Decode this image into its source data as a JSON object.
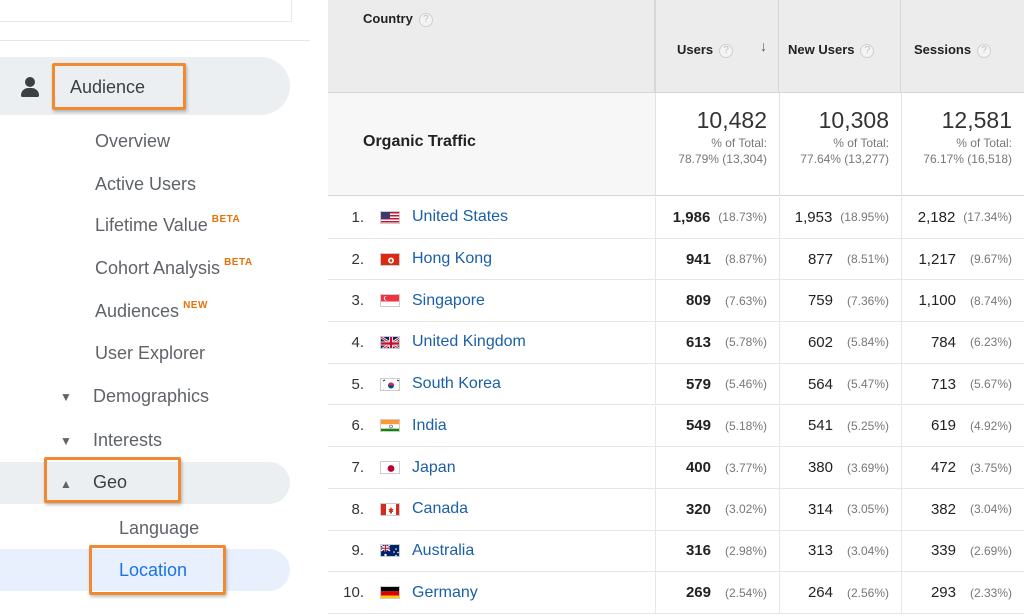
{
  "sidebar": {
    "audience_label": "Audience",
    "items": [
      {
        "label": "Overview",
        "badge": ""
      },
      {
        "label": "Active Users",
        "badge": ""
      },
      {
        "label": "Lifetime Value",
        "badge": "BETA"
      },
      {
        "label": "Cohort Analysis",
        "badge": "BETA"
      },
      {
        "label": "Audiences",
        "badge": "NEW"
      },
      {
        "label": "User Explorer",
        "badge": ""
      }
    ],
    "demographics_label": "Demographics",
    "interests_label": "Interests",
    "geo_label": "Geo",
    "geo_sub": {
      "language": "Language",
      "location": "Location"
    },
    "caret_down": "▼",
    "caret_up": "▲"
  },
  "table": {
    "headers": {
      "country": "Country",
      "users": "Users",
      "new_users": "New Users",
      "sessions": "Sessions",
      "help": "?",
      "sort": "↓"
    },
    "summary": {
      "label": "Organic Traffic",
      "users": {
        "total": "10,482",
        "line1": "% of Total:",
        "line2": "78.79% (13,304)"
      },
      "new_users": {
        "total": "10,308",
        "line1": "% of Total:",
        "line2": "77.64% (13,277)"
      },
      "sessions": {
        "total": "12,581",
        "line1": "% of Total:",
        "line2": "76.17% (16,518)"
      }
    },
    "rows": [
      {
        "idx": "1.",
        "country": "United States",
        "flag": "us-flag-icon",
        "users": "1,986",
        "users_pct": "(18.73%)",
        "new": "1,953",
        "new_pct": "(18.95%)",
        "sess": "2,182",
        "sess_pct": "(17.34%)"
      },
      {
        "idx": "2.",
        "country": "Hong Kong",
        "flag": "hk-flag-icon",
        "users": "941",
        "users_pct": "(8.87%)",
        "new": "877",
        "new_pct": "(8.51%)",
        "sess": "1,217",
        "sess_pct": "(9.67%)"
      },
      {
        "idx": "3.",
        "country": "Singapore",
        "flag": "sg-flag-icon",
        "users": "809",
        "users_pct": "(7.63%)",
        "new": "759",
        "new_pct": "(7.36%)",
        "sess": "1,100",
        "sess_pct": "(8.74%)"
      },
      {
        "idx": "4.",
        "country": "United Kingdom",
        "flag": "uk-flag-icon",
        "users": "613",
        "users_pct": "(5.78%)",
        "new": "602",
        "new_pct": "(5.84%)",
        "sess": "784",
        "sess_pct": "(6.23%)"
      },
      {
        "idx": "5.",
        "country": "South Korea",
        "flag": "kr-flag-icon",
        "users": "579",
        "users_pct": "(5.46%)",
        "new": "564",
        "new_pct": "(5.47%)",
        "sess": "713",
        "sess_pct": "(5.67%)"
      },
      {
        "idx": "6.",
        "country": "India",
        "flag": "in-flag-icon",
        "users": "549",
        "users_pct": "(5.18%)",
        "new": "541",
        "new_pct": "(5.25%)",
        "sess": "619",
        "sess_pct": "(4.92%)"
      },
      {
        "idx": "7.",
        "country": "Japan",
        "flag": "jp-flag-icon",
        "users": "400",
        "users_pct": "(3.77%)",
        "new": "380",
        "new_pct": "(3.69%)",
        "sess": "472",
        "sess_pct": "(3.75%)"
      },
      {
        "idx": "8.",
        "country": "Canada",
        "flag": "ca-flag-icon",
        "users": "320",
        "users_pct": "(3.02%)",
        "new": "314",
        "new_pct": "(3.05%)",
        "sess": "382",
        "sess_pct": "(3.04%)"
      },
      {
        "idx": "9.",
        "country": "Australia",
        "flag": "au-flag-icon",
        "users": "316",
        "users_pct": "(2.98%)",
        "new": "313",
        "new_pct": "(3.04%)",
        "sess": "339",
        "sess_pct": "(2.69%)"
      },
      {
        "idx": "10.",
        "country": "Germany",
        "flag": "de-flag-icon",
        "users": "269",
        "users_pct": "(2.54%)",
        "new": "264",
        "new_pct": "(2.56%)",
        "sess": "293",
        "sess_pct": "(2.33%)"
      }
    ]
  },
  "colors": {
    "highlight": "#f0892f",
    "link": "#1a5fa8",
    "badge": "#e8710a",
    "active": "#1a73e8"
  }
}
